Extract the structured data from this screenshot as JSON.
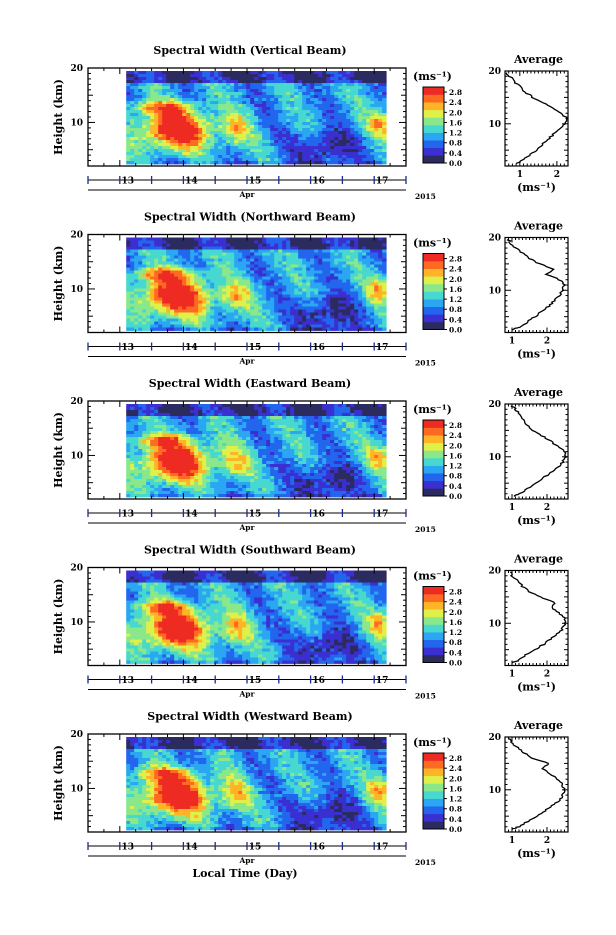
{
  "figure": {
    "xlabel": "Local Time (Day)",
    "colors": {
      "colormap": [
        "#2b2b60",
        "#3a2fd0",
        "#2266ee",
        "#2aa6f2",
        "#47d8d0",
        "#8ae88a",
        "#dff04a",
        "#ffb428",
        "#ff6a22",
        "#ee2b22"
      ],
      "axis": "#000000",
      "tickmark": "#1e2a8a"
    }
  },
  "chart_data": [
    {
      "type": "heatmap",
      "title": "Spectral Width (Vertical Beam)",
      "ylabel": "Height (km)",
      "ylim": [
        2,
        20
      ],
      "yticks": [
        10,
        20
      ],
      "xlim": [
        12.5,
        17.5
      ],
      "xticks": [
        13,
        14,
        15,
        16,
        17
      ],
      "data_xrange": [
        13.1,
        17.15
      ],
      "month_label": "Apr",
      "year_label": "2015",
      "colorbar": {
        "label": "(ms⁻¹)",
        "ticks": [
          "0.0",
          "0.4",
          "0.8",
          "1.2",
          "1.6",
          "2.0",
          "2.4",
          "2.8"
        ],
        "range": [
          0.0,
          3.0
        ]
      },
      "average_profile": {
        "title": "Average",
        "xlabel": "(ms⁻¹)",
        "xticks": [
          1,
          2
        ],
        "xlim": [
          0.6,
          2.3
        ],
        "ylim": [
          2,
          20
        ],
        "yticks": [
          10,
          20
        ],
        "height_km": [
          2.5,
          3,
          4,
          5,
          6,
          7,
          8,
          9,
          10,
          11,
          12,
          13,
          14,
          15,
          16,
          17,
          18,
          19,
          19.7
        ],
        "width_ms": [
          0.9,
          1.05,
          1.25,
          1.45,
          1.6,
          1.75,
          1.9,
          2.05,
          2.2,
          2.28,
          2.12,
          1.9,
          1.6,
          1.35,
          1.15,
          1.0,
          0.85,
          0.72,
          0.65
        ]
      }
    },
    {
      "type": "heatmap",
      "title": "Spectral Width (Northward Beam)",
      "ylabel": "Height (km)",
      "ylim": [
        2,
        20
      ],
      "yticks": [
        10,
        20
      ],
      "xlim": [
        12.5,
        17.5
      ],
      "xticks": [
        13,
        14,
        15,
        16,
        17
      ],
      "data_xrange": [
        13.1,
        17.15
      ],
      "month_label": "Apr",
      "year_label": "2015",
      "colorbar": {
        "label": "(ms⁻¹)",
        "ticks": [
          "0.0",
          "0.4",
          "0.8",
          "1.2",
          "1.6",
          "2.0",
          "2.4",
          "2.8"
        ],
        "range": [
          0.0,
          3.0
        ]
      },
      "average_profile": {
        "title": "Average",
        "xlabel": "(ms⁻¹)",
        "xticks": [
          1,
          2
        ],
        "xlim": [
          0.8,
          2.6
        ],
        "ylim": [
          2,
          20
        ],
        "yticks": [
          10,
          20
        ],
        "height_km": [
          2.5,
          3,
          4,
          5,
          6,
          7,
          8,
          9,
          10,
          11,
          12,
          13,
          14,
          15,
          16,
          17,
          18,
          19,
          19.7
        ],
        "width_ms": [
          1.0,
          1.2,
          1.45,
          1.65,
          1.85,
          2.05,
          2.2,
          2.35,
          2.45,
          2.5,
          2.35,
          2.0,
          2.15,
          1.8,
          1.5,
          1.3,
          1.1,
          0.95,
          0.9
        ]
      }
    },
    {
      "type": "heatmap",
      "title": "Spectral Width (Eastward Beam)",
      "ylabel": "Height (km)",
      "ylim": [
        2,
        20
      ],
      "yticks": [
        10,
        20
      ],
      "xlim": [
        12.5,
        17.5
      ],
      "xticks": [
        13,
        14,
        15,
        16,
        17
      ],
      "data_xrange": [
        13.1,
        17.15
      ],
      "month_label": "Apr",
      "year_label": "2015",
      "colorbar": {
        "label": "(ms⁻¹)",
        "ticks": [
          "0.0",
          "0.4",
          "0.8",
          "1.2",
          "1.6",
          "2.0",
          "2.4",
          "2.8"
        ],
        "range": [
          0.0,
          3.0
        ]
      },
      "average_profile": {
        "title": "Average",
        "xlabel": "(ms⁻¹)",
        "xticks": [
          1,
          2
        ],
        "xlim": [
          0.8,
          2.6
        ],
        "ylim": [
          2,
          20
        ],
        "yticks": [
          10,
          20
        ],
        "height_km": [
          2.5,
          3,
          4,
          5,
          6,
          7,
          8,
          9,
          10,
          11,
          12,
          13,
          14,
          15,
          16,
          17,
          18,
          19,
          19.7
        ],
        "width_ms": [
          1.05,
          1.2,
          1.45,
          1.7,
          1.9,
          2.1,
          2.3,
          2.45,
          2.55,
          2.5,
          2.3,
          2.1,
          1.85,
          1.6,
          1.45,
          1.3,
          1.2,
          1.1,
          1.0
        ]
      }
    },
    {
      "type": "heatmap",
      "title": "Spectral Width (Southward Beam)",
      "ylabel": "Height (km)",
      "ylim": [
        2,
        20
      ],
      "yticks": [
        10,
        20
      ],
      "xlim": [
        12.5,
        17.5
      ],
      "xticks": [
        13,
        14,
        15,
        16,
        17
      ],
      "data_xrange": [
        13.1,
        17.15
      ],
      "month_label": "Apr",
      "year_label": "2015",
      "colorbar": {
        "label": "(ms⁻¹)",
        "ticks": [
          "0.0",
          "0.4",
          "0.8",
          "1.2",
          "1.6",
          "2.0",
          "2.4",
          "2.8"
        ],
        "range": [
          0.0,
          3.0
        ]
      },
      "average_profile": {
        "title": "Average",
        "xlabel": "(ms⁻¹)",
        "xticks": [
          1,
          2
        ],
        "xlim": [
          0.8,
          2.6
        ],
        "ylim": [
          2,
          20
        ],
        "yticks": [
          10,
          20
        ],
        "height_km": [
          2.5,
          3,
          4,
          5,
          6,
          7,
          8,
          9,
          10,
          11,
          12,
          13,
          14,
          15,
          16,
          17,
          18,
          19,
          19.7
        ],
        "width_ms": [
          1.0,
          1.2,
          1.4,
          1.65,
          1.9,
          2.1,
          2.3,
          2.45,
          2.5,
          2.5,
          2.35,
          2.15,
          2.2,
          1.8,
          1.5,
          1.3,
          1.15,
          1.0,
          0.95
        ]
      }
    },
    {
      "type": "heatmap",
      "title": "Spectral Width (Westward Beam)",
      "ylabel": "Height (km)",
      "ylim": [
        2,
        20
      ],
      "yticks": [
        10,
        20
      ],
      "xlim": [
        12.5,
        17.5
      ],
      "xticks": [
        13,
        14,
        15,
        16,
        17
      ],
      "data_xrange": [
        13.1,
        17.15
      ],
      "month_label": "Apr",
      "year_label": "2015",
      "colorbar": {
        "label": "(ms⁻¹)",
        "ticks": [
          "0.0",
          "0.4",
          "0.8",
          "1.2",
          "1.6",
          "2.0",
          "2.4",
          "2.8"
        ],
        "range": [
          0.0,
          3.0
        ]
      },
      "average_profile": {
        "title": "Average",
        "xlabel": "(ms⁻¹)",
        "xticks": [
          1,
          2
        ],
        "xlim": [
          0.8,
          2.6
        ],
        "ylim": [
          2,
          20
        ],
        "yticks": [
          10,
          20
        ],
        "height_km": [
          2.5,
          3,
          4,
          5,
          6,
          7,
          8,
          9,
          10,
          11,
          12,
          13,
          14,
          15,
          16,
          17,
          18,
          19,
          19.7
        ],
        "width_ms": [
          1.0,
          1.2,
          1.45,
          1.7,
          1.95,
          2.15,
          2.35,
          2.45,
          2.5,
          2.45,
          2.3,
          2.1,
          1.85,
          2.05,
          1.6,
          1.35,
          1.15,
          1.0,
          0.9
        ]
      }
    }
  ]
}
